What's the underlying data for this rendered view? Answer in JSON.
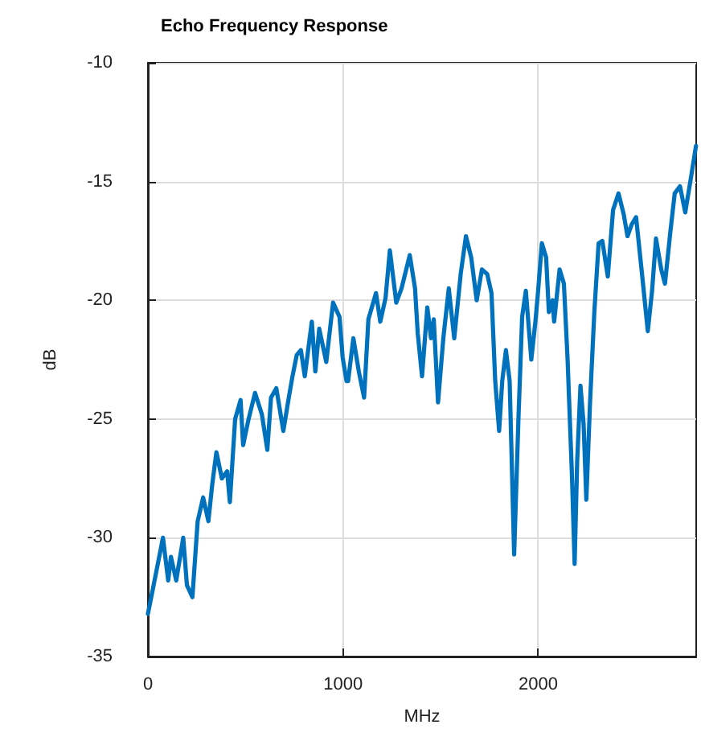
{
  "chart_data": {
    "type": "line",
    "title": "Echo Frequency Response",
    "xlabel": "MHz",
    "ylabel": "dB",
    "xlim": [
      0,
      2810
    ],
    "xticks": [
      0,
      1000,
      2000
    ],
    "ylim": [
      -35,
      -10
    ],
    "yticks": [
      -35,
      -30,
      -25,
      -20,
      -15,
      -10
    ],
    "grid": true,
    "marker": "none",
    "line_style": "solid",
    "series": [
      {
        "color": "#0072bd",
        "x": [
          0,
          22,
          77,
          104,
          118,
          145,
          181,
          200,
          228,
          255,
          283,
          310,
          329,
          351,
          379,
          406,
          420,
          447,
          475,
          488,
          516,
          549,
          584,
          612,
          631,
          658,
          694,
          722,
          741,
          763,
          784,
          804,
          840,
          858,
          878,
          914,
          949,
          982,
          998,
          1018,
          1026,
          1053,
          1081,
          1108,
          1130,
          1169,
          1191,
          1218,
          1240,
          1273,
          1300,
          1342,
          1369,
          1383,
          1405,
          1432,
          1451,
          1465,
          1487,
          1514,
          1542,
          1570,
          1603,
          1630,
          1657,
          1685,
          1712,
          1739,
          1761,
          1780,
          1800,
          1816,
          1835,
          1854,
          1877,
          1899,
          1918,
          1937,
          1965,
          1986,
          2000,
          2019,
          2041,
          2055,
          2074,
          2082,
          2110,
          2132,
          2151,
          2173,
          2187,
          2200,
          2217,
          2233,
          2247,
          2266,
          2288,
          2310,
          2329,
          2357,
          2384,
          2412,
          2439,
          2458,
          2480,
          2502,
          2535,
          2562,
          2584,
          2604,
          2631,
          2650,
          2678,
          2700,
          2727,
          2754,
          2782,
          2809
        ],
        "values": [
          -33.2,
          -32.3,
          -30.0,
          -31.8,
          -30.8,
          -31.8,
          -30.0,
          -32.0,
          -32.5,
          -29.3,
          -28.3,
          -29.3,
          -27.8,
          -26.4,
          -27.5,
          -27.2,
          -28.5,
          -25.0,
          -24.2,
          -26.1,
          -25.0,
          -23.9,
          -24.8,
          -26.3,
          -24.1,
          -23.7,
          -25.5,
          -24.1,
          -23.2,
          -22.3,
          -22.1,
          -23.2,
          -20.9,
          -23.0,
          -21.2,
          -22.6,
          -20.1,
          -20.7,
          -22.4,
          -23.4,
          -23.4,
          -21.6,
          -23.0,
          -24.1,
          -20.8,
          -19.7,
          -20.9,
          -19.9,
          -17.9,
          -20.1,
          -19.5,
          -18.1,
          -19.5,
          -21.4,
          -23.2,
          -20.3,
          -21.6,
          -20.8,
          -24.3,
          -21.6,
          -19.5,
          -21.6,
          -18.9,
          -17.3,
          -18.2,
          -20.0,
          -18.7,
          -18.9,
          -19.7,
          -23.4,
          -25.5,
          -23.4,
          -22.1,
          -23.4,
          -30.7,
          -25.0,
          -20.7,
          -19.6,
          -22.5,
          -20.9,
          -19.6,
          -17.6,
          -18.2,
          -20.5,
          -20.0,
          -20.9,
          -18.7,
          -19.3,
          -22.5,
          -27.3,
          -31.1,
          -26.8,
          -23.6,
          -25.2,
          -28.4,
          -24.3,
          -20.5,
          -17.6,
          -17.5,
          -19.0,
          -16.2,
          -15.5,
          -16.4,
          -17.3,
          -16.8,
          -16.5,
          -19.1,
          -21.3,
          -19.6,
          -17.4,
          -18.7,
          -19.3,
          -17.1,
          -15.5,
          -15.2,
          -16.3,
          -14.9,
          -13.5
        ]
      }
    ]
  }
}
